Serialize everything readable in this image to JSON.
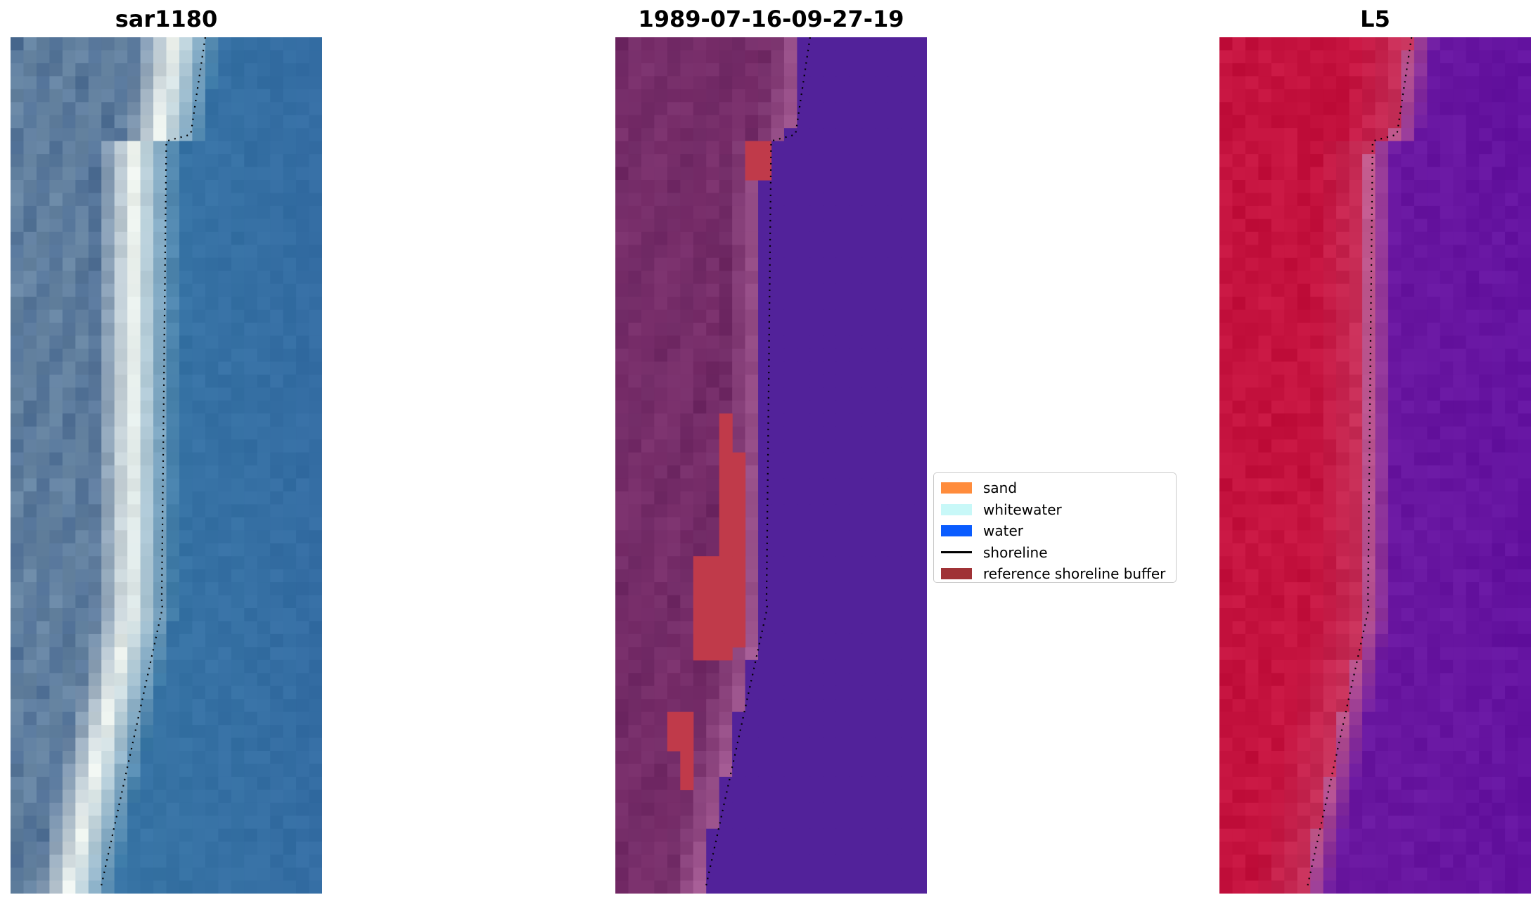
{
  "figure": {
    "titles": {
      "left": "sar1180",
      "middle": "1989-07-16-09-27-19",
      "right": "L5"
    },
    "colors": {
      "rgb_water": "#3a78a6",
      "rgb_beach": "#eef3ee",
      "rgb_land": "#4f6f95",
      "class_water": "#52229a",
      "class_sand": "#a35a93",
      "class_land": "#6e2863",
      "buffer": "#c03a4a",
      "nir_land": "#c4123e",
      "nir_water": "#6e1ba0",
      "shoreline": "#000000"
    }
  },
  "legend": {
    "items": [
      {
        "label": "sand",
        "color": "#ff8c3c",
        "kind": "patch"
      },
      {
        "label": "whitewater",
        "color": "#c8f8f8",
        "kind": "patch"
      },
      {
        "label": "water",
        "color": "#0a5cff",
        "kind": "patch"
      },
      {
        "label": "shoreline",
        "color": "#000000",
        "kind": "line"
      },
      {
        "label": "reference shoreline buffer",
        "color": "#a03236",
        "kind": "patch"
      }
    ]
  }
}
